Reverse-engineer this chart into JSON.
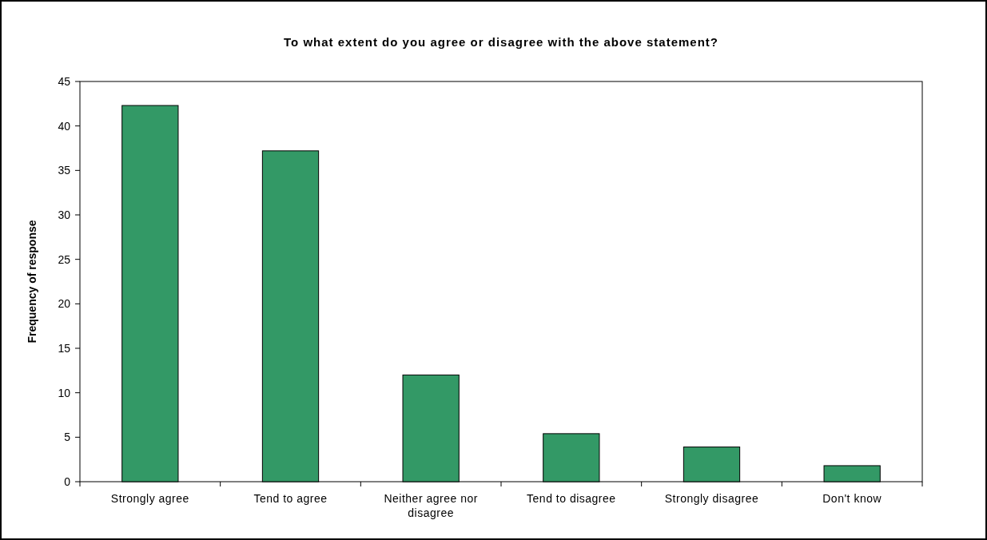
{
  "chart_data": {
    "type": "bar",
    "title": "To what extent do you agree or disagree with the above statement?",
    "ylabel": "Frequency of response",
    "categories": [
      "Strongly agree",
      "Tend to agree",
      "Neither agree nor disagree",
      "Tend to disagree",
      "Strongly disagree",
      "Don't know"
    ],
    "values": [
      42.3,
      37.2,
      12.0,
      5.4,
      3.9,
      1.8
    ],
    "color": "#339966",
    "ylim": [
      0,
      45
    ],
    "yticks": [
      0,
      5,
      10,
      15,
      20,
      25,
      30,
      35,
      40,
      45
    ]
  }
}
